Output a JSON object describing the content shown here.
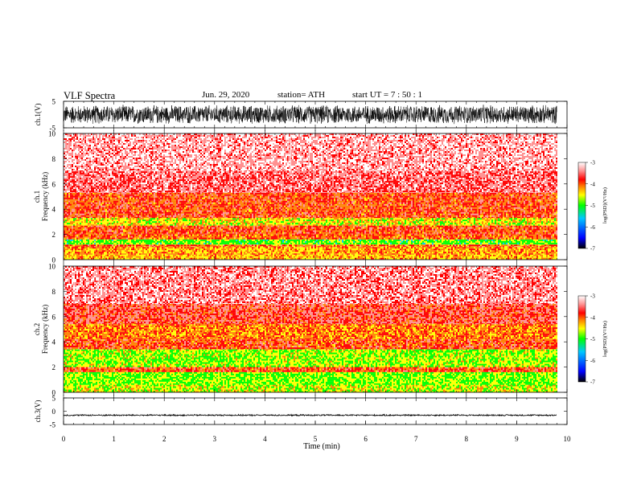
{
  "header": {
    "title": "VLF  Spectra",
    "date": "Jun. 29, 2020",
    "station": "station= ATH",
    "start": "start  UT  =    7 : 50 : 1"
  },
  "colors": {
    "spectrum_scale": [
      "#000000",
      "#0000ff",
      "#00c8ff",
      "#00ff00",
      "#ffff00",
      "#ff8000",
      "#ff0000",
      "#ff9090",
      "#ffffff"
    ],
    "waveform": "#000000"
  },
  "chart_data": [
    {
      "type": "line",
      "name": "ch1-waveform",
      "ylabel": "ch.1(V)",
      "ylim": [
        -5,
        5
      ],
      "yticks": [
        "5",
        "-5"
      ],
      "xlim": [
        0,
        10
      ],
      "data_x_range": [
        0,
        9.8
      ],
      "amplitude_envelope": [
        -3.8,
        3.8
      ]
    },
    {
      "type": "heatmap",
      "name": "ch1-spectrogram",
      "ylabel": "ch.1\nFrequency  (kHz)",
      "ylim": [
        0,
        10
      ],
      "yticks": [
        "0",
        "2",
        "4",
        "6",
        "8",
        "10"
      ],
      "xlim": [
        0,
        10
      ],
      "data_x_range": [
        0,
        9.8
      ],
      "frequency_bands_kHz": [
        {
          "from": 0,
          "to": 0.4,
          "level": -4.3
        },
        {
          "from": 0.4,
          "to": 1.0,
          "level": -4.2
        },
        {
          "from": 1.0,
          "to": 1.2,
          "level": -4.0
        },
        {
          "from": 1.2,
          "to": 1.6,
          "level": -4.9
        },
        {
          "from": 1.6,
          "to": 2.0,
          "level": -4.0
        },
        {
          "from": 2.0,
          "to": 2.7,
          "level": -3.9
        },
        {
          "from": 2.7,
          "to": 3.3,
          "level": -4.5
        },
        {
          "from": 3.3,
          "to": 5.3,
          "level": -3.9
        },
        {
          "from": 5.3,
          "to": 7.0,
          "level": -3.5
        },
        {
          "from": 7.0,
          "to": 10.0,
          "level": -3.3
        }
      ],
      "colorbar": {
        "label": "log(PSD)(V²/Hz)",
        "ticks": [
          "-3",
          "-4",
          "-5",
          "-6",
          "-7"
        ],
        "range": [
          -7,
          -3
        ]
      }
    },
    {
      "type": "heatmap",
      "name": "ch2-spectrogram",
      "ylabel": "ch.2\nFrequency  (kHz)",
      "ylim": [
        0,
        10
      ],
      "yticks": [
        "0",
        "2",
        "4",
        "6",
        "8",
        "10"
      ],
      "xlim": [
        0,
        10
      ],
      "data_x_range": [
        0,
        9.8
      ],
      "frequency_bands_kHz": [
        {
          "from": 0,
          "to": 0.6,
          "level": -4.6
        },
        {
          "from": 0.6,
          "to": 1.6,
          "level": -4.8
        },
        {
          "from": 1.6,
          "to": 2.0,
          "level": -3.9
        },
        {
          "from": 2.0,
          "to": 3.4,
          "level": -4.7
        },
        {
          "from": 3.4,
          "to": 4.2,
          "level": -3.9
        },
        {
          "from": 4.2,
          "to": 5.4,
          "level": -4.1
        },
        {
          "from": 5.4,
          "to": 7.0,
          "level": -3.7
        },
        {
          "from": 7.0,
          "to": 10.0,
          "level": -3.4
        }
      ],
      "colorbar": {
        "label": "log(PSD)(V²/Hz)",
        "ticks": [
          "-3",
          "-4",
          "-5",
          "-6",
          "-7"
        ],
        "range": [
          -7,
          -3
        ]
      }
    },
    {
      "type": "line",
      "name": "ch3-waveform",
      "ylabel": "ch.3(V)",
      "ylim": [
        -5,
        5
      ],
      "yticks": [
        "5",
        "0",
        "-5"
      ],
      "xlim": [
        0,
        10
      ],
      "data_x_range": [
        0,
        9.8
      ],
      "offset": -1.5,
      "amplitude_envelope": [
        -1.8,
        -1.2
      ]
    }
  ],
  "xaxis": {
    "label": "Time  (min)",
    "ticks": [
      "0",
      "1",
      "2",
      "3",
      "4",
      "5",
      "6",
      "7",
      "8",
      "9",
      "10"
    ]
  }
}
